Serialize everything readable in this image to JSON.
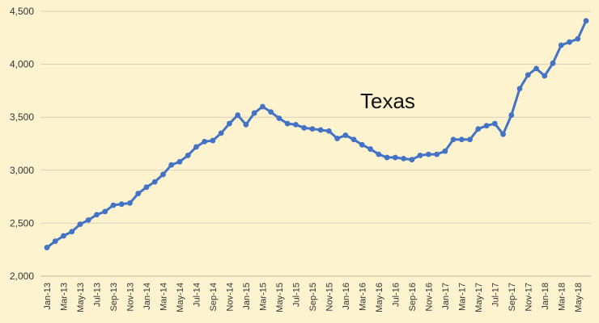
{
  "chart_data": {
    "type": "line",
    "title": "",
    "xlabel": "",
    "ylabel": "",
    "annotation": "Texas",
    "ylim": [
      2000,
      4500
    ],
    "yticks": [
      "2,000",
      "2,500",
      "3,000",
      "3,500",
      "4,000",
      "4,500"
    ],
    "ytick_values": [
      2000,
      2500,
      3000,
      3500,
      4000,
      4500
    ],
    "grid": true,
    "legend": "none",
    "line_color": "#4472c4",
    "x": [
      "Jan-13",
      "Feb-13",
      "Mar-13",
      "Apr-13",
      "May-13",
      "Jun-13",
      "Jul-13",
      "Aug-13",
      "Sep-13",
      "Oct-13",
      "Nov-13",
      "Dec-13",
      "Jan-14",
      "Feb-14",
      "Mar-14",
      "Apr-14",
      "May-14",
      "Jun-14",
      "Jul-14",
      "Aug-14",
      "Sep-14",
      "Oct-14",
      "Nov-14",
      "Dec-14",
      "Jan-15",
      "Feb-15",
      "Mar-15",
      "Apr-15",
      "May-15",
      "Jun-15",
      "Jul-15",
      "Aug-15",
      "Sep-15",
      "Oct-15",
      "Nov-15",
      "Dec-15",
      "Jan-16",
      "Feb-16",
      "Mar-16",
      "Apr-16",
      "May-16",
      "Jun-16",
      "Jul-16",
      "Aug-16",
      "Sep-16",
      "Oct-16",
      "Nov-16",
      "Dec-16",
      "Jan-17",
      "Feb-17",
      "Mar-17",
      "Apr-17",
      "May-17",
      "Jun-17",
      "Jul-17",
      "Aug-17",
      "Sep-17",
      "Oct-17",
      "Nov-17",
      "Dec-17",
      "Jan-18",
      "Feb-18",
      "Mar-18",
      "Apr-18",
      "May-18",
      "Jun-18"
    ],
    "xtick_labels": [
      "Jan-13",
      "Mar-13",
      "May-13",
      "Jul-13",
      "Sep-13",
      "Nov-13",
      "Jan-14",
      "Mar-14",
      "May-14",
      "Jul-14",
      "Sep-14",
      "Nov-14",
      "Jan-15",
      "Mar-15",
      "May-15",
      "Jul-15",
      "Sep-15",
      "Nov-15",
      "Jan-16",
      "Mar-16",
      "May-16",
      "Jul-16",
      "Sep-16",
      "Nov-16",
      "Jan-17",
      "Mar-17",
      "May-17",
      "Jul-17",
      "Sep-17",
      "Nov-17",
      "Jan-18",
      "Mar-18",
      "May-18"
    ],
    "series": [
      {
        "values": [
          2270,
          2330,
          2380,
          2420,
          2490,
          2530,
          2580,
          2610,
          2670,
          2680,
          2690,
          2780,
          2840,
          2890,
          2960,
          3050,
          3080,
          3140,
          3220,
          3270,
          3280,
          3350,
          3440,
          3520,
          3430,
          3540,
          3600,
          3550,
          3490,
          3440,
          3430,
          3400,
          3390,
          3380,
          3370,
          3300,
          3330,
          3290,
          3240,
          3200,
          3150,
          3120,
          3120,
          3110,
          3100,
          3140,
          3150,
          3150,
          3180,
          3290,
          3290,
          3290,
          3390,
          3420,
          3440,
          3340,
          3520,
          3770,
          3900,
          3960,
          3890,
          4010,
          4180,
          4210,
          4240,
          4410
        ]
      }
    ]
  }
}
